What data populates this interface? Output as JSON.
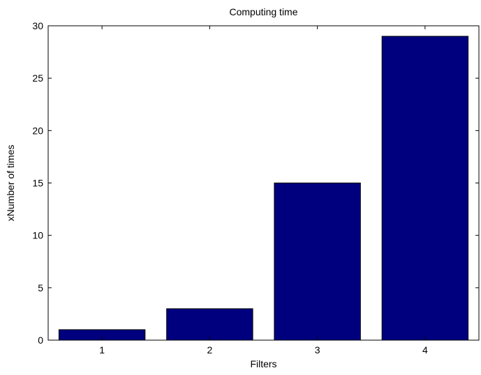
{
  "chart_data": {
    "type": "bar",
    "title": "Computing time",
    "xlabel": "Filters",
    "ylabel": "xNumber of times",
    "categories": [
      "1",
      "2",
      "3",
      "4"
    ],
    "values": [
      1,
      3,
      15,
      29
    ],
    "xlim": [
      0.5,
      4.5
    ],
    "ylim": [
      0,
      30
    ],
    "yticks": [
      0,
      5,
      10,
      15,
      20,
      25,
      30
    ],
    "grid": false,
    "legend": "none",
    "bar_color": "#00007f"
  }
}
